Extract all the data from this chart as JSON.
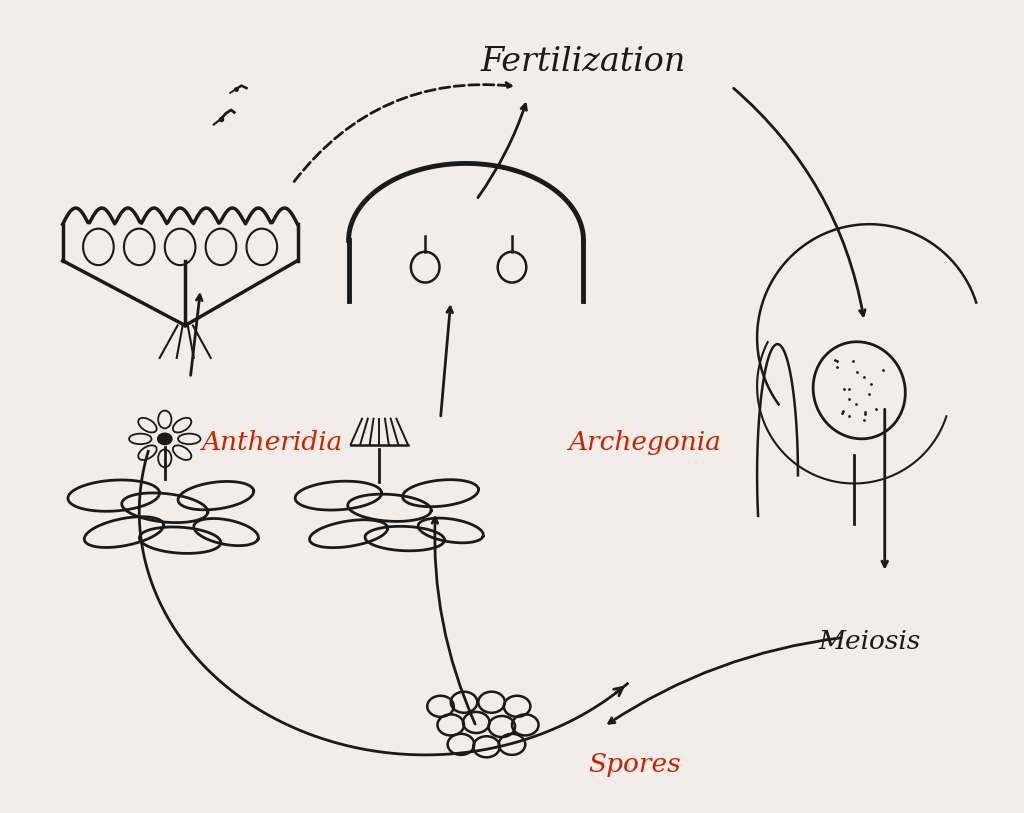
{
  "background_color": "#f2ede8",
  "title_text": "Fertilization",
  "meiosis_text": "Meiosis",
  "spores_text": "Spores",
  "antheridia_text": "Antheridia",
  "archegonia_text": "Archegonia",
  "label_color_red": "#cc2200",
  "label_color_black": "#1a1a1a",
  "title_fontsize": 24,
  "label_fontsize": 19,
  "figsize": [
    10.24,
    8.13
  ],
  "dpi": 100
}
